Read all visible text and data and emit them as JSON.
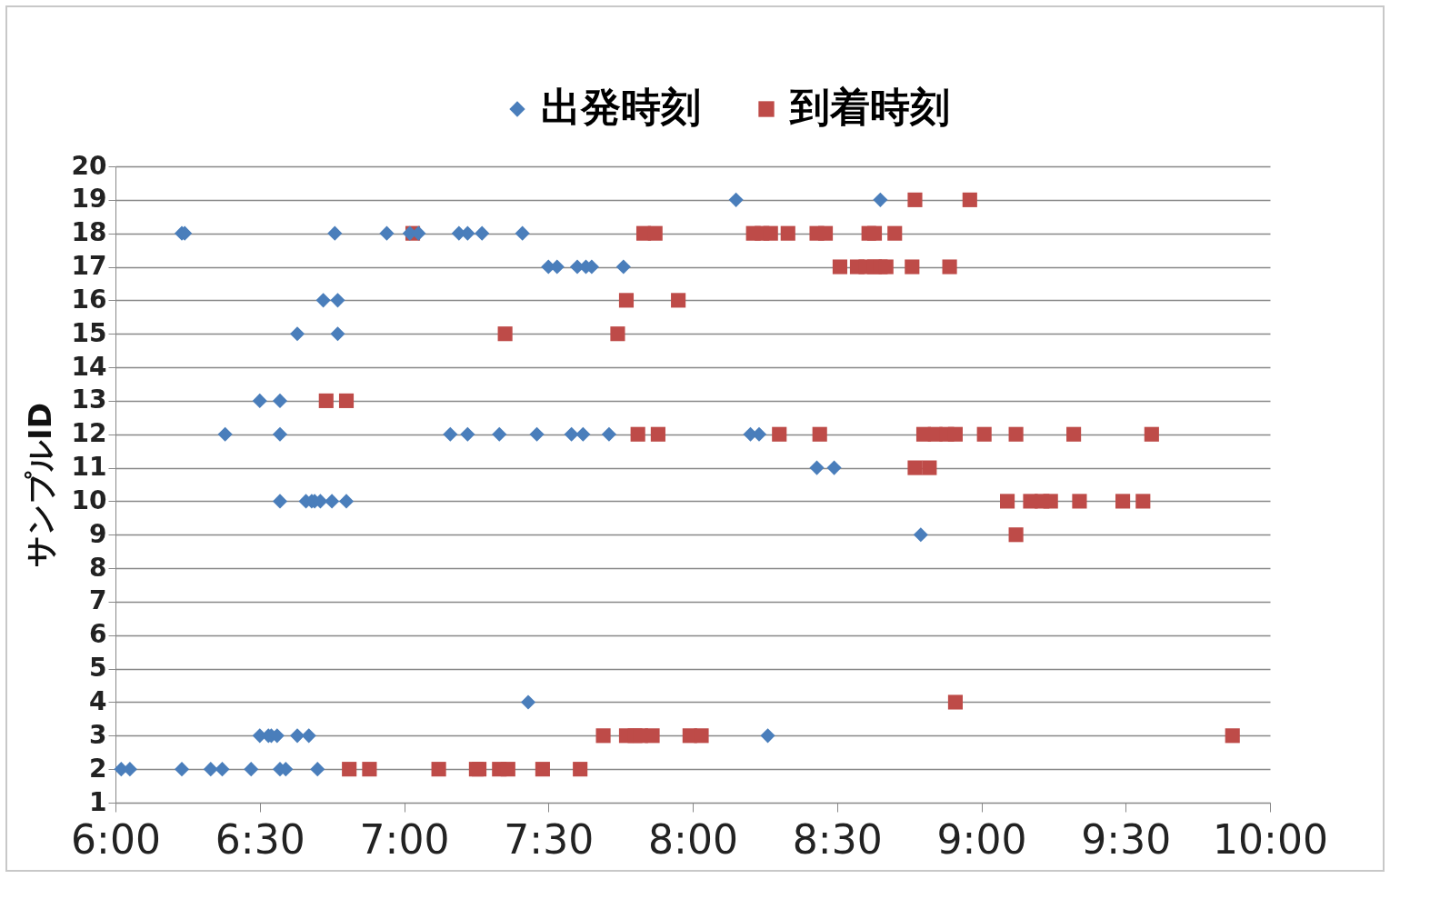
{
  "chart_data": {
    "type": "scatter",
    "ylabel": "サンプルID",
    "legend": "top",
    "grid": "y",
    "xlim": [
      6,
      10
    ],
    "xticks": [
      {
        "value": 6,
        "label": "6:00"
      },
      {
        "value": 6.5,
        "label": "6:30"
      },
      {
        "value": 7,
        "label": "7:00"
      },
      {
        "value": 7.5,
        "label": "7:30"
      },
      {
        "value": 8,
        "label": "8:00"
      },
      {
        "value": 8.5,
        "label": "8:30"
      },
      {
        "value": 9,
        "label": "9:00"
      },
      {
        "value": 9.5,
        "label": "9:30"
      },
      {
        "value": 10,
        "label": "10:00"
      }
    ],
    "ylim": [
      1,
      20
    ],
    "yticks": [
      1,
      2,
      3,
      4,
      5,
      6,
      7,
      8,
      9,
      10,
      11,
      12,
      13,
      14,
      15,
      16,
      17,
      18,
      19,
      20
    ],
    "series": [
      {
        "name": "出発時刻",
        "color": "#4a7ebb",
        "marker": "diamond",
        "x": [
          8.15,
          8.65,
          6.23,
          6.24,
          6.76,
          6.94,
          7.02,
          7.05,
          7.19,
          7.22,
          7.27,
          7.41,
          7.5,
          7.53,
          7.6,
          7.63,
          7.65,
          7.76,
          6.72,
          6.77,
          6.63,
          6.77,
          6.5,
          6.57,
          6.38,
          6.57,
          7.16,
          7.22,
          7.33,
          7.46,
          7.58,
          7.62,
          7.71,
          8.2,
          8.23,
          8.43,
          8.49,
          6.57,
          6.66,
          6.68,
          6.69,
          6.71,
          6.75,
          6.8,
          8.79,
          7.43,
          6.5,
          6.53,
          6.54,
          6.56,
          6.63,
          6.67,
          8.26,
          6.02,
          6.05,
          6.23,
          6.33,
          6.37,
          6.47,
          6.57,
          6.59,
          6.7
        ],
        "values": [
          19,
          19,
          18,
          18,
          18,
          18,
          18,
          18,
          18,
          18,
          18,
          18,
          17,
          17,
          17,
          17,
          17,
          17,
          16,
          16,
          15,
          15,
          13,
          13,
          12,
          12,
          12,
          12,
          12,
          12,
          12,
          12,
          12,
          12,
          12,
          11,
          11,
          10,
          10,
          10,
          10,
          10,
          10,
          10,
          9,
          4,
          3,
          3,
          3,
          3,
          3,
          3,
          3,
          2,
          2,
          2,
          2,
          2,
          2,
          2,
          2,
          2
        ]
      },
      {
        "name": "到着時刻",
        "color": "#be4b48",
        "marker": "square",
        "x": [
          8.77,
          8.96,
          7.03,
          7.83,
          7.87,
          8.21,
          8.24,
          8.27,
          8.33,
          8.43,
          8.46,
          8.61,
          8.63,
          8.7,
          8.51,
          8.57,
          8.6,
          8.63,
          8.65,
          8.67,
          8.76,
          8.89,
          7.77,
          7.95,
          7.35,
          7.74,
          6.73,
          6.8,
          7.81,
          7.88,
          8.3,
          8.44,
          8.8,
          8.84,
          8.88,
          8.91,
          9.01,
          9.12,
          9.32,
          9.59,
          8.77,
          8.82,
          9.09,
          9.17,
          9.21,
          9.24,
          9.34,
          9.49,
          9.56,
          9.12,
          8.91,
          7.69,
          7.77,
          7.8,
          7.82,
          7.86,
          7.99,
          8.03,
          9.87,
          6.81,
          6.88,
          7.12,
          7.25,
          7.26,
          7.33,
          7.36,
          7.48,
          7.61
        ],
        "values": [
          19,
          19,
          18,
          18,
          18,
          18,
          18,
          18,
          18,
          18,
          18,
          18,
          18,
          18,
          17,
          17,
          17,
          17,
          17,
          17,
          17,
          17,
          16,
          16,
          15,
          15,
          13,
          13,
          12,
          12,
          12,
          12,
          12,
          12,
          12,
          12,
          12,
          12,
          12,
          12,
          11,
          11,
          10,
          10,
          10,
          10,
          10,
          10,
          10,
          9,
          4,
          3,
          3,
          3,
          3,
          3,
          3,
          3,
          3,
          2,
          2,
          2,
          2,
          2,
          2,
          2,
          2,
          2
        ]
      }
    ]
  }
}
